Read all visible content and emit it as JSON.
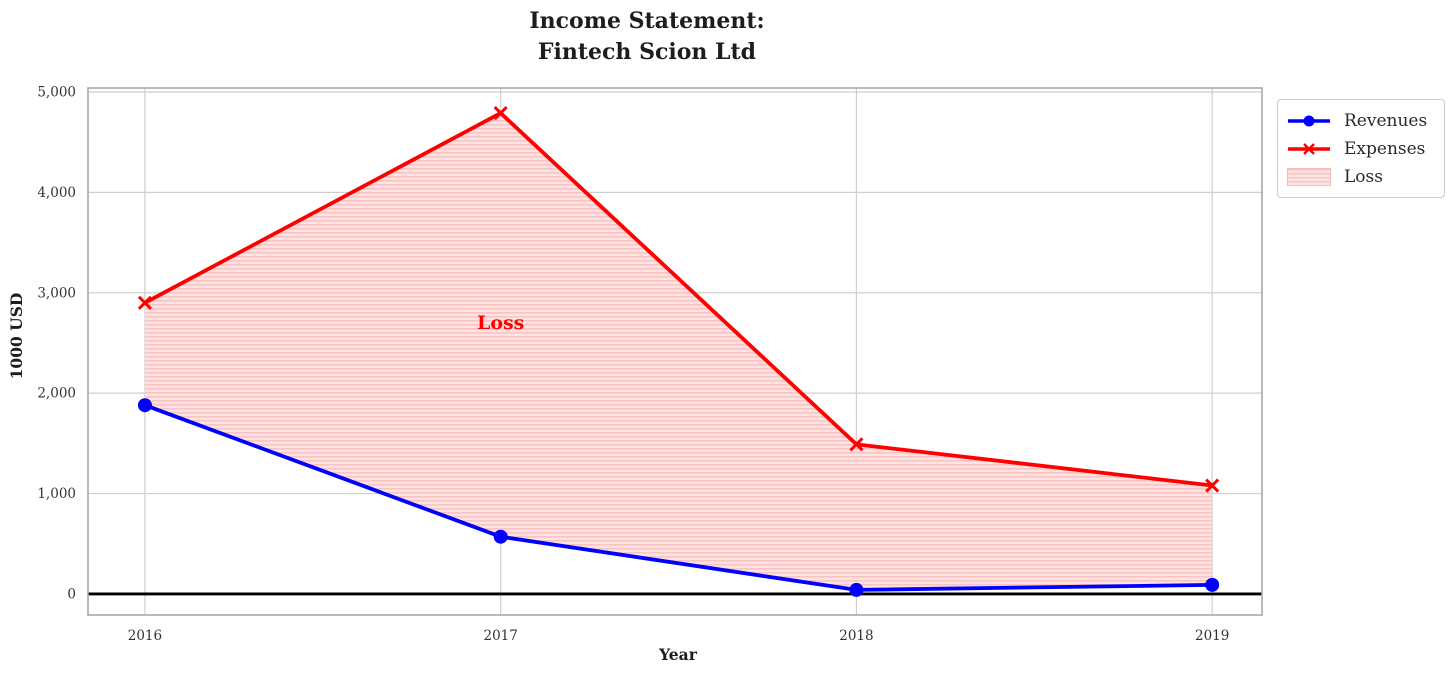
{
  "chart_data": {
    "type": "line",
    "title": "Income Statement:\nFintech Scion Ltd",
    "xlabel": "Year",
    "ylabel": "1000 USD",
    "x": [
      2016,
      2017,
      2018,
      2019
    ],
    "x_tick_labels": [
      "2016",
      "2017",
      "2018",
      "2019"
    ],
    "y_ticks": [
      0,
      1000,
      2000,
      3000,
      4000,
      5000
    ],
    "y_tick_labels": [
      "0",
      "1,000",
      "2,000",
      "3,000",
      "4,000",
      "5,000"
    ],
    "xlim": [
      2015.84,
      2019.14
    ],
    "ylim": [
      -210,
      5040
    ],
    "grid": true,
    "legend_position": "upper-right-outside",
    "series": [
      {
        "name": "Revenues",
        "color": "#0000ff",
        "marker": "circle",
        "values": [
          1880,
          570,
          40,
          90
        ]
      },
      {
        "name": "Expenses",
        "color": "#ff0000",
        "marker": "x",
        "values": [
          2900,
          4790,
          1490,
          1080
        ]
      }
    ],
    "loss": {
      "label": "Loss",
      "fill_style": "horizontal-hatch",
      "fill_base": "#ffe3e3",
      "fill_stripe": "#f8c4c4",
      "annotation": {
        "text": "Loss",
        "x": 2017,
        "y": 2700,
        "color": "#ff0000"
      }
    },
    "zero_line_color": "#000000",
    "grid_color": "#cfcfcf",
    "spine_color": "#a8a8a8",
    "tick_label_color": "#333333"
  }
}
